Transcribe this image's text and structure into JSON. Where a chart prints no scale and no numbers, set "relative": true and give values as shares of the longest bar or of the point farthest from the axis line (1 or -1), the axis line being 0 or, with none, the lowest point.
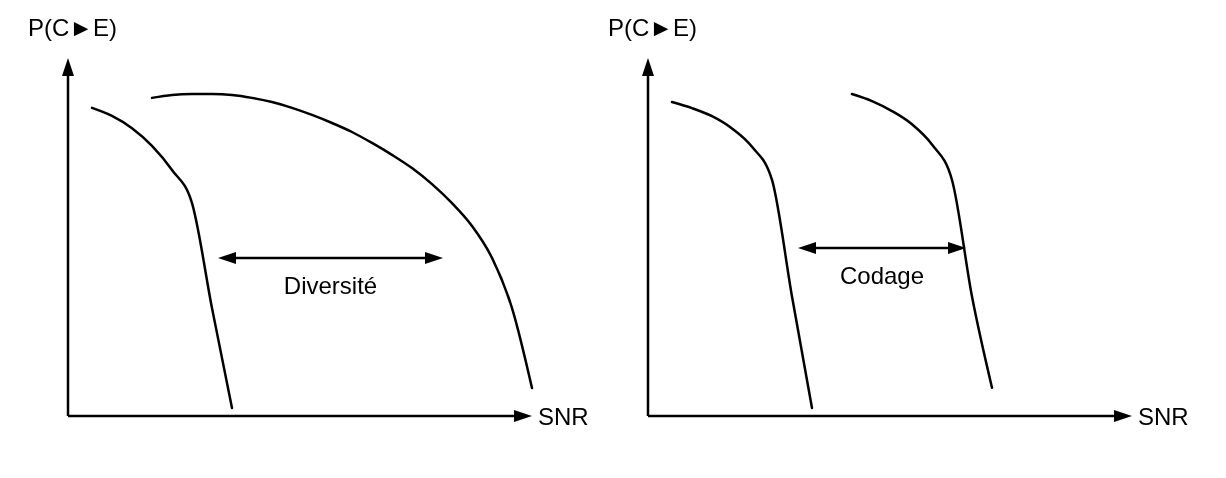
{
  "chart_data": [
    {
      "type": "line",
      "relative": true,
      "xlabel": "SNR",
      "ylabel": "P(C►E)",
      "line_style": "solid",
      "annotations": [
        "Diversité"
      ],
      "categories": [
        null,
        null,
        null,
        null,
        null,
        null,
        null,
        null,
        null,
        null,
        null,
        null,
        null,
        null,
        null,
        null,
        null,
        null,
        null,
        null,
        null,
        null,
        null
      ],
      "series": [
        {
          "color": "#000000",
          "values": [
            0.957,
            0.932,
            0.894,
            0.839,
            0.764,
            0.661,
            0.335,
            0.025,
            null,
            null,
            null,
            null,
            null,
            null,
            null,
            null,
            null,
            null,
            null,
            null,
            null,
            null,
            null
          ]
        },
        {
          "color": "#000000",
          "values": [
            null,
            null,
            null,
            0.988,
            0.997,
            1.0,
            1.0,
            0.997,
            0.988,
            0.975,
            0.957,
            0.935,
            0.91,
            0.882,
            0.848,
            0.811,
            0.77,
            0.72,
            0.661,
            0.59,
            0.491,
            0.335,
            0.087
          ]
        }
      ]
    },
    {
      "type": "line",
      "relative": true,
      "xlabel": "SNR",
      "ylabel": "P(C►E)",
      "line_style": "solid",
      "annotations": [
        "Codage"
      ],
      "categories": [
        null,
        null,
        null,
        null,
        null,
        null,
        null,
        null,
        null,
        null,
        null,
        null,
        null,
        null,
        null,
        null,
        null,
        null,
        null,
        null,
        null,
        null,
        null,
        null
      ],
      "series": [
        {
          "color": "#000000",
          "values": [
            0.975,
            0.956,
            0.931,
            0.893,
            0.836,
            0.733,
            0.371,
            0.025,
            null,
            null,
            null,
            null,
            null,
            null,
            null,
            null,
            null,
            null,
            null,
            null,
            null,
            null,
            null,
            null
          ]
        },
        {
          "color": "#000000",
          "values": [
            null,
            null,
            null,
            null,
            null,
            null,
            null,
            null,
            null,
            1.0,
            0.978,
            0.947,
            0.906,
            0.843,
            0.733,
            0.371,
            0.088,
            null,
            null,
            null,
            null,
            null,
            null,
            null
          ]
        }
      ]
    }
  ]
}
